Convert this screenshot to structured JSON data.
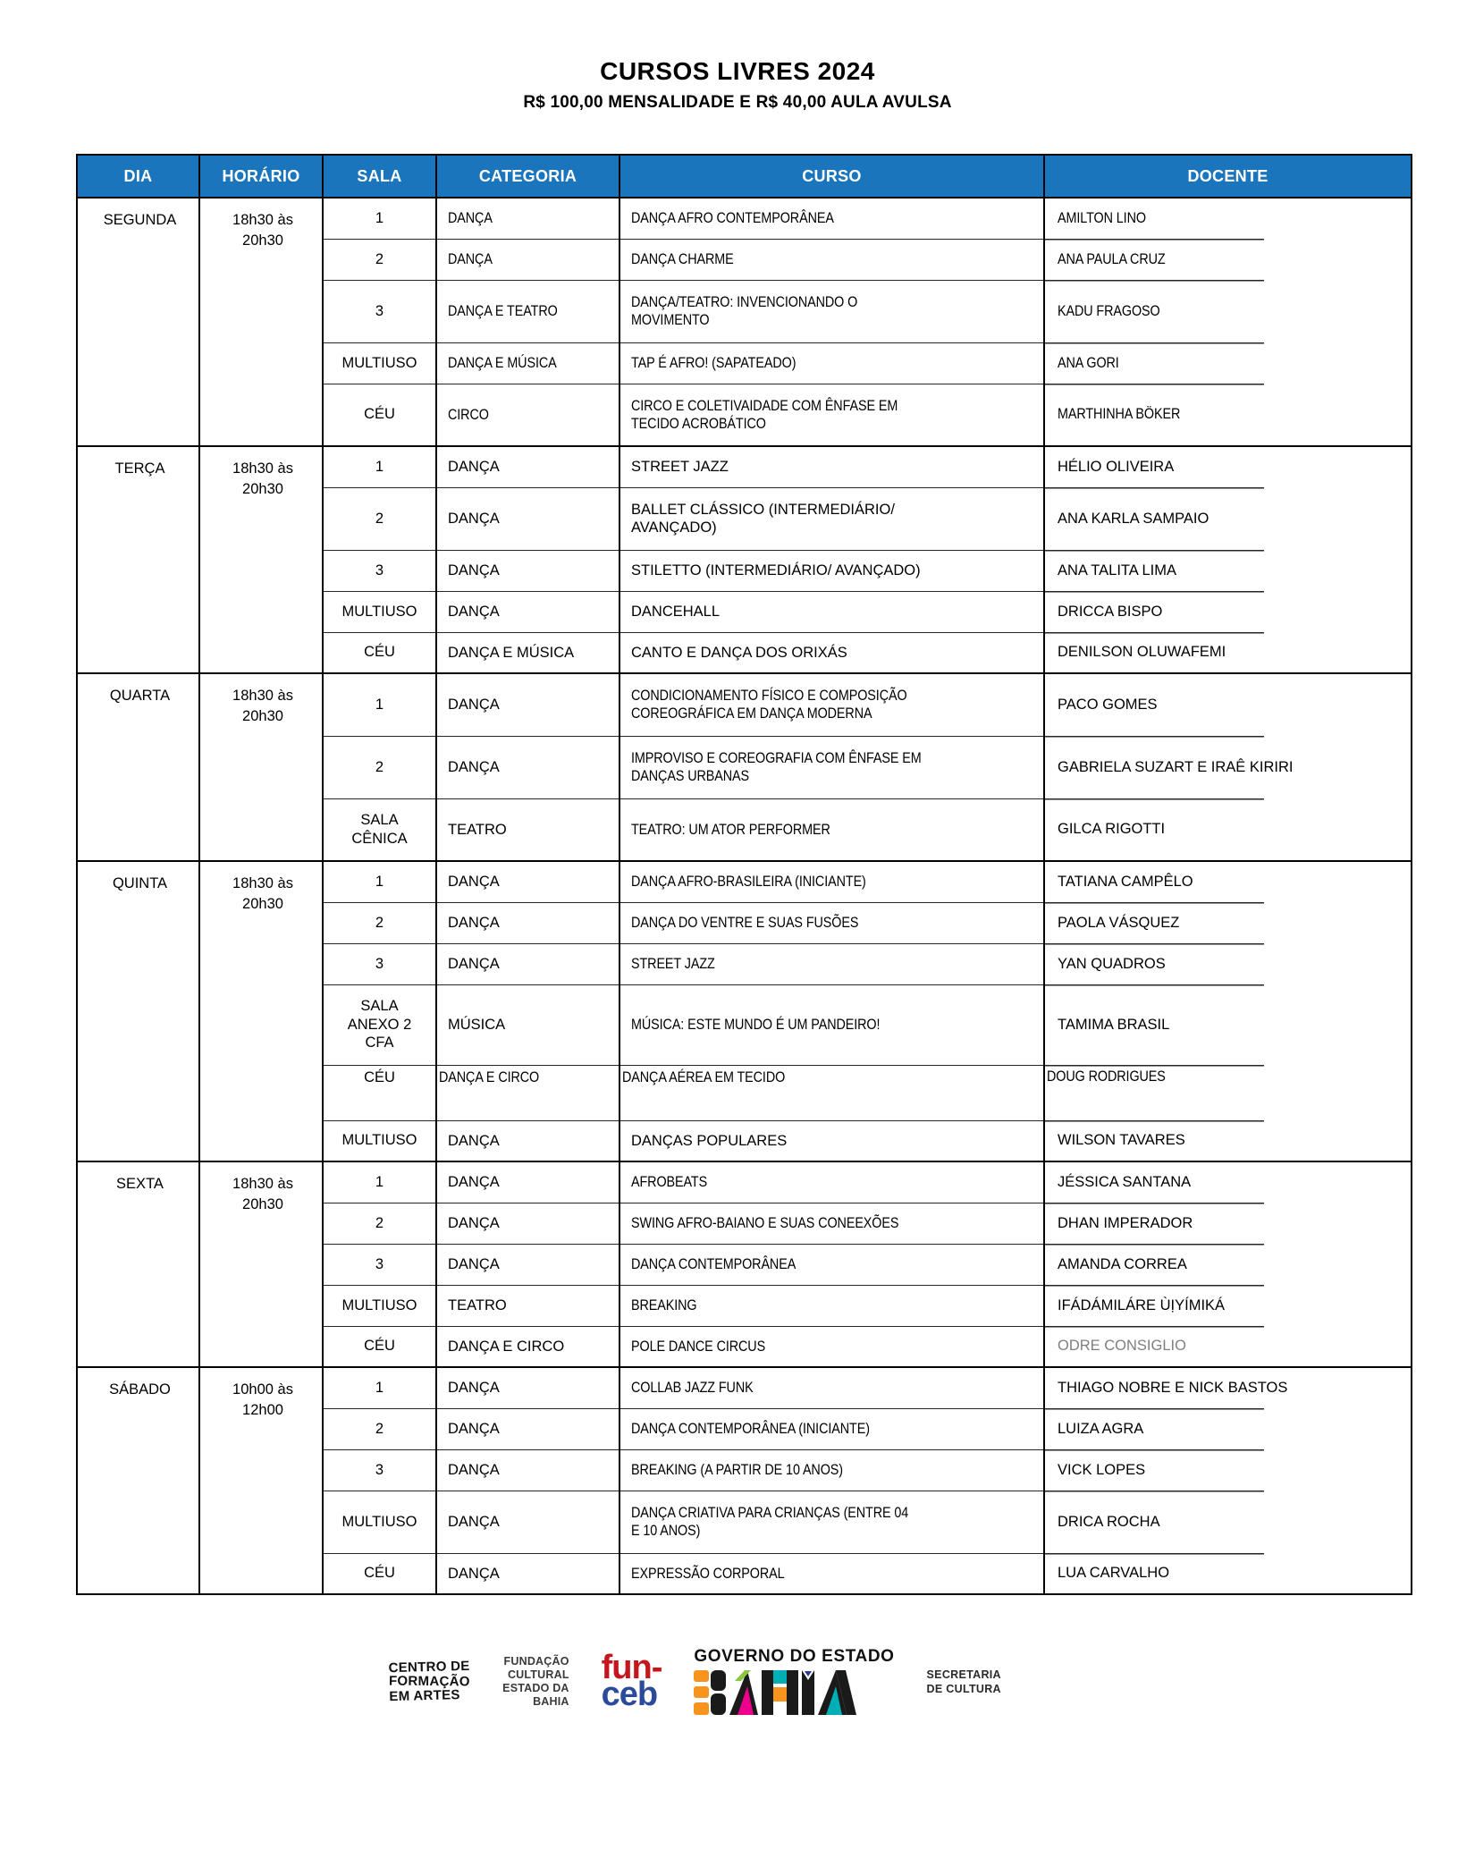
{
  "title": "CURSOS LIVRES 2024",
  "subtitle": "R$ 100,00 MENSALIDADE E R$ 40,00 AULA AVULSA",
  "colors": {
    "header_bg": "#1B75BC",
    "muted_docente": "#7F7F7F",
    "funceb_red": "#C4161C",
    "funceb_blue": "#2B4A9B",
    "bahia_orange": "#F7941D",
    "bahia_green": "#8DC63F",
    "bahia_pink": "#EC008C",
    "bahia_teal": "#00AEB5",
    "bahia_blue": "#2B3990",
    "bahia_black": "#1A1A1A"
  },
  "table": {
    "columns": [
      "DIA",
      "HORÁRIO",
      "SALA",
      "CATEGORIA",
      "CURSO",
      "DOCENTE"
    ],
    "days": [
      {
        "dia": "SEGUNDA",
        "horario": "18h30 às\n20h30",
        "rows": [
          {
            "sala": "1",
            "categoria": "DANÇA",
            "curso": "DANÇA AFRO CONTEMPORÂNEA",
            "docente": "AMILTON LINO",
            "narrow": "all"
          },
          {
            "sala": "2",
            "categoria": "DANÇA",
            "curso": "DANÇA CHARME",
            "docente": "ANA PAULA CRUZ",
            "narrow": "all"
          },
          {
            "sala": "3",
            "categoria": "DANÇA E TEATRO",
            "curso": "DANÇA/TEATRO: INVENCIONANDO O\nMOVIMENTO",
            "docente": "KADU FRAGOSO",
            "narrow": "all"
          },
          {
            "sala": "MULTIUSO",
            "categoria": "DANÇA E MÚSICA",
            "curso": "TAP É AFRO! (SAPATEADO)",
            "docente": "ANA GORI",
            "narrow": "all"
          },
          {
            "sala": "CÉU",
            "categoria": "CIRCO",
            "curso": "CIRCO E COLETIVAIDADE COM ÊNFASE EM\nTECIDO ACROBÁTICO",
            "docente": "MARTHINHA BÖKER",
            "narrow": "all"
          }
        ]
      },
      {
        "dia": "TERÇA",
        "horario": "18h30 às\n20h30",
        "rows": [
          {
            "sala": "1",
            "categoria": "DANÇA",
            "curso": "STREET JAZZ",
            "docente": "HÉLIO OLIVEIRA"
          },
          {
            "sala": "2",
            "categoria": "DANÇA",
            "curso": "BALLET CLÁSSICO (INTERMEDIÁRIO/\nAVANÇADO)",
            "docente": "ANA KARLA SAMPAIO"
          },
          {
            "sala": "3",
            "categoria": "DANÇA",
            "curso": "STILETTO (INTERMEDIÁRIO/ AVANÇADO)",
            "docente": "ANA TALITA LIMA"
          },
          {
            "sala": "MULTIUSO",
            "categoria": "DANÇA",
            "curso": "DANCEHALL",
            "docente": "DRICCA BISPO"
          },
          {
            "sala": "CÉU",
            "categoria": "DANÇA E MÚSICA",
            "curso": "CANTO E DANÇA DOS ORIXÁS",
            "docente": "DENILSON OLUWAFEMI"
          }
        ]
      },
      {
        "dia": "QUARTA",
        "horario": "18h30 às\n20h30",
        "rows": [
          {
            "sala": "1",
            "categoria": "DANÇA",
            "curso": "CONDICIONAMENTO FÍSICO E COMPOSIÇÃO\nCOREOGRÁFICA EM DANÇA MODERNA",
            "docente": "PACO GOMES",
            "narrow": "curso"
          },
          {
            "sala": "2",
            "categoria": "DANÇA",
            "curso": "IMPROVISO E COREOGRAFIA COM ÊNFASE EM\nDANÇAS URBANAS",
            "docente": "GABRIELA SUZART E IRAÊ KIRIRI",
            "narrow": "curso"
          },
          {
            "sala": "SALA\nCÊNICA",
            "categoria": "TEATRO",
            "curso": "TEATRO: UM ATOR PERFORMER",
            "docente": "GILCA RIGOTTI",
            "narrow": "curso"
          }
        ]
      },
      {
        "dia": "QUINTA",
        "horario": "18h30 às\n20h30",
        "rows": [
          {
            "sala": "1",
            "categoria": "DANÇA",
            "curso": "DANÇA AFRO-BRASILEIRA (INICIANTE)",
            "docente": "TATIANA CAMPÊLO",
            "narrow": "curso"
          },
          {
            "sala": "2",
            "categoria": "DANÇA",
            "curso": "DANÇA DO VENTRE E SUAS FUSÕES",
            "docente": "PAOLA VÁSQUEZ",
            "narrow": "curso"
          },
          {
            "sala": "3",
            "categoria": "DANÇA",
            "curso": "STREET JAZZ",
            "docente": "YAN QUADROS",
            "narrow": "curso"
          },
          {
            "sala": "SALA\nANEXO 2\nCFA",
            "categoria": "MÚSICA",
            "curso": "MÚSICA: ESTE MUNDO É UM PANDEIRO!",
            "docente": "TAMIMA BRASIL",
            "narrow": "curso"
          },
          {
            "sala": "CÉU",
            "categoria": "DANÇA E CIRCO",
            "curso": "DANÇA AÉREA EM TECIDO",
            "docente": "DOUG RODRIGUES",
            "narrow": "all",
            "flush": true
          },
          {
            "sala": "MULTIUSO",
            "categoria": "DANÇA",
            "curso": "DANÇAS POPULARES",
            "docente": "WILSON TAVARES"
          }
        ]
      },
      {
        "dia": "SEXTA",
        "horario": "18h30 às\n20h30",
        "rows": [
          {
            "sala": "1",
            "categoria": "DANÇA",
            "curso": "AFROBEATS",
            "docente": "JÉSSICA SANTANA",
            "narrow": "curso"
          },
          {
            "sala": "2",
            "categoria": "DANÇA",
            "curso": "SWING AFRO-BAIANO E SUAS CONEEXÕES",
            "docente": "DHAN IMPERADOR",
            "narrow": "curso"
          },
          {
            "sala": "3",
            "categoria": "DANÇA",
            "curso": "DANÇA CONTEMPORÂNEA",
            "docente": "AMANDA CORREA",
            "narrow": "curso"
          },
          {
            "sala": "MULTIUSO",
            "categoria": "TEATRO",
            "curso": "BREAKING",
            "docente": "IFÁDÁMILÁRE ÙỊYÍMIKÁ",
            "narrow": "curso"
          },
          {
            "sala": "CÉU",
            "categoria": "DANÇA E CIRCO",
            "curso": "POLE DANCE CIRCUS",
            "docente": "ODRE CONSIGLIO",
            "narrow": "curso",
            "muted": true
          }
        ]
      },
      {
        "dia": "SÁBADO",
        "horario": "10h00 às\n12h00",
        "rows": [
          {
            "sala": "1",
            "categoria": "DANÇA",
            "curso": "COLLAB JAZZ FUNK",
            "docente": "THIAGO NOBRE E NICK BASTOS",
            "narrow": "curso"
          },
          {
            "sala": "2",
            "categoria": "DANÇA",
            "curso": "DANÇA CONTEMPORÂNEA (INICIANTE)",
            "docente": "LUIZA AGRA",
            "narrow": "curso"
          },
          {
            "sala": "3",
            "categoria": "DANÇA",
            "curso": "BREAKING (A PARTIR DE 10 ANOS)",
            "docente": "VICK LOPES",
            "narrow": "curso"
          },
          {
            "sala": "MULTIUSO",
            "categoria": "DANÇA",
            "curso": "DANÇA CRIATIVA PARA CRIANÇAS (ENTRE 04\nE 10 ANOS)",
            "docente": "DRICA ROCHA",
            "narrow": "curso"
          },
          {
            "sala": "CÉU",
            "categoria": "DANÇA",
            "curso": "EXPRESSÃO CORPORAL",
            "docente": "LUA CARVALHO",
            "narrow": "curso"
          }
        ]
      }
    ]
  },
  "footer": {
    "cfa": {
      "lines": [
        "CENTRO DE",
        "FORMAÇÃO",
        "EM ARTES"
      ]
    },
    "funceb": {
      "label_lines": [
        "FUNDAÇÃO",
        "CULTURAL",
        "ESTADO DA",
        "BAHIA"
      ],
      "logo_top": "fun-",
      "logo_bottom": "ceb"
    },
    "governo": {
      "top": "GOVERNO DO ESTADO",
      "logo_text": "BAHIA",
      "secretaria_lines": [
        "SECRETARIA",
        "DE CULTURA"
      ]
    }
  }
}
